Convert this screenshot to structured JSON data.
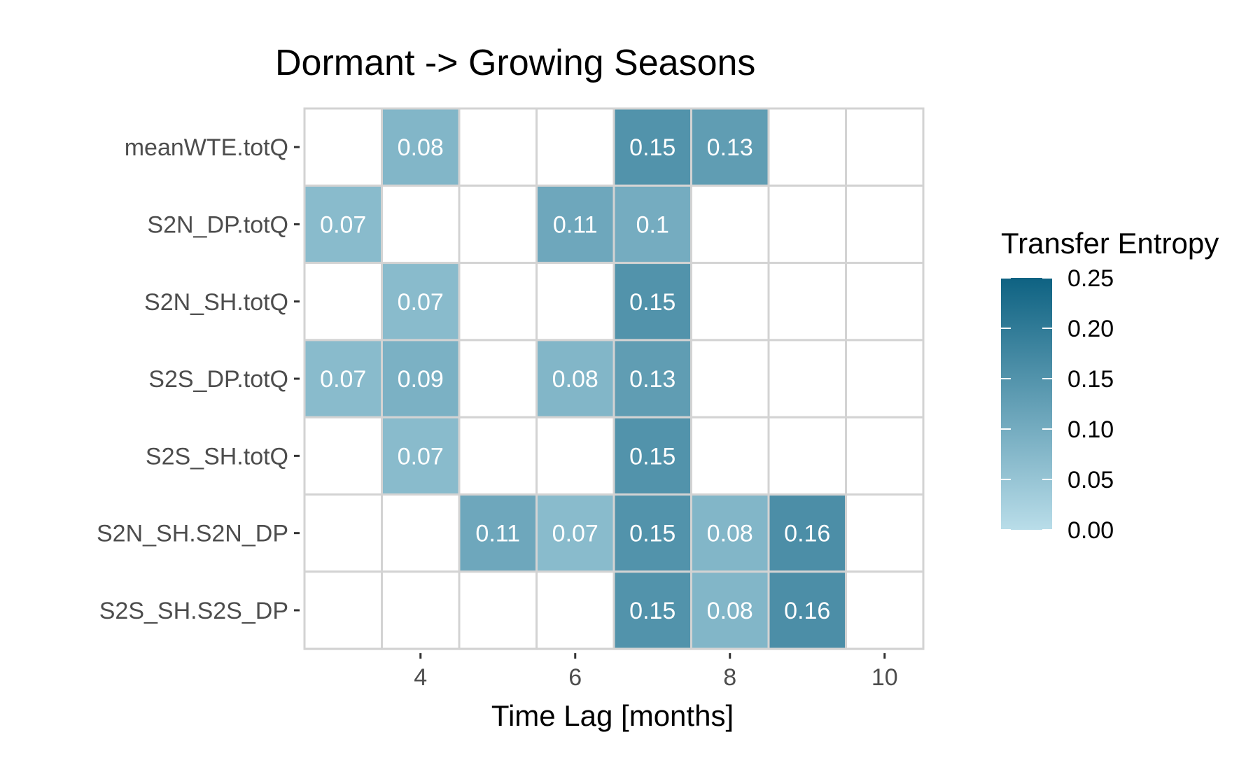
{
  "chart_data": {
    "type": "heatmap",
    "title": "Dormant -> Growing Seasons",
    "xlabel": "Time Lag [months]",
    "ylabel": "",
    "x_columns": [
      3,
      4,
      5,
      6,
      7,
      8,
      9,
      10
    ],
    "x_ticks": [
      4,
      6,
      8,
      10
    ],
    "x_tick_labels": [
      "4",
      "6",
      "8",
      "10"
    ],
    "rows": [
      "meanWTE.totQ",
      "S2N_DP.totQ",
      "S2N_SH.totQ",
      "S2S_DP.totQ",
      "S2S_SH.totQ",
      "S2N_SH.S2N_DP",
      "S2S_SH.S2S_DP"
    ],
    "values": [
      [
        null,
        0.08,
        null,
        null,
        0.15,
        0.13,
        null,
        null
      ],
      [
        0.07,
        null,
        null,
        0.11,
        0.1,
        null,
        null,
        null
      ],
      [
        null,
        0.07,
        null,
        null,
        0.15,
        null,
        null,
        null
      ],
      [
        0.07,
        0.09,
        null,
        0.08,
        0.13,
        null,
        null,
        null
      ],
      [
        null,
        0.07,
        null,
        null,
        0.15,
        null,
        null,
        null
      ],
      [
        null,
        null,
        0.11,
        0.07,
        0.15,
        0.08,
        0.16,
        null
      ],
      [
        null,
        null,
        null,
        null,
        0.15,
        0.08,
        0.16,
        null
      ]
    ],
    "cell_labels": [
      [
        "",
        "0.08",
        "",
        "",
        "0.15",
        "0.13",
        "",
        ""
      ],
      [
        "0.07",
        "",
        "",
        "0.11",
        "0.1",
        "",
        "",
        ""
      ],
      [
        "",
        "0.07",
        "",
        "",
        "0.15",
        "",
        "",
        ""
      ],
      [
        "0.07",
        "0.09",
        "",
        "0.08",
        "0.13",
        "",
        "",
        ""
      ],
      [
        "",
        "0.07",
        "",
        "",
        "0.15",
        "",
        "",
        ""
      ],
      [
        "",
        "",
        "0.11",
        "0.07",
        "0.15",
        "0.08",
        "0.16",
        ""
      ],
      [
        "",
        "",
        "",
        "",
        "0.15",
        "0.08",
        "0.16",
        ""
      ]
    ],
    "color_scale": {
      "title": "Transfer Entropy",
      "min": 0.0,
      "max": 0.25,
      "low_color": "#b9dde9",
      "high_color": "#0e6282",
      "empty_color": "#ffffff",
      "grid_color": "#d3d3d3",
      "ticks": [
        0.0,
        0.05,
        0.1,
        0.15,
        0.2,
        0.25
      ],
      "tick_labels": [
        "0.00",
        "0.05",
        "0.10",
        "0.15",
        "0.20",
        "0.25"
      ]
    },
    "legend_position": "right",
    "grid": true
  }
}
